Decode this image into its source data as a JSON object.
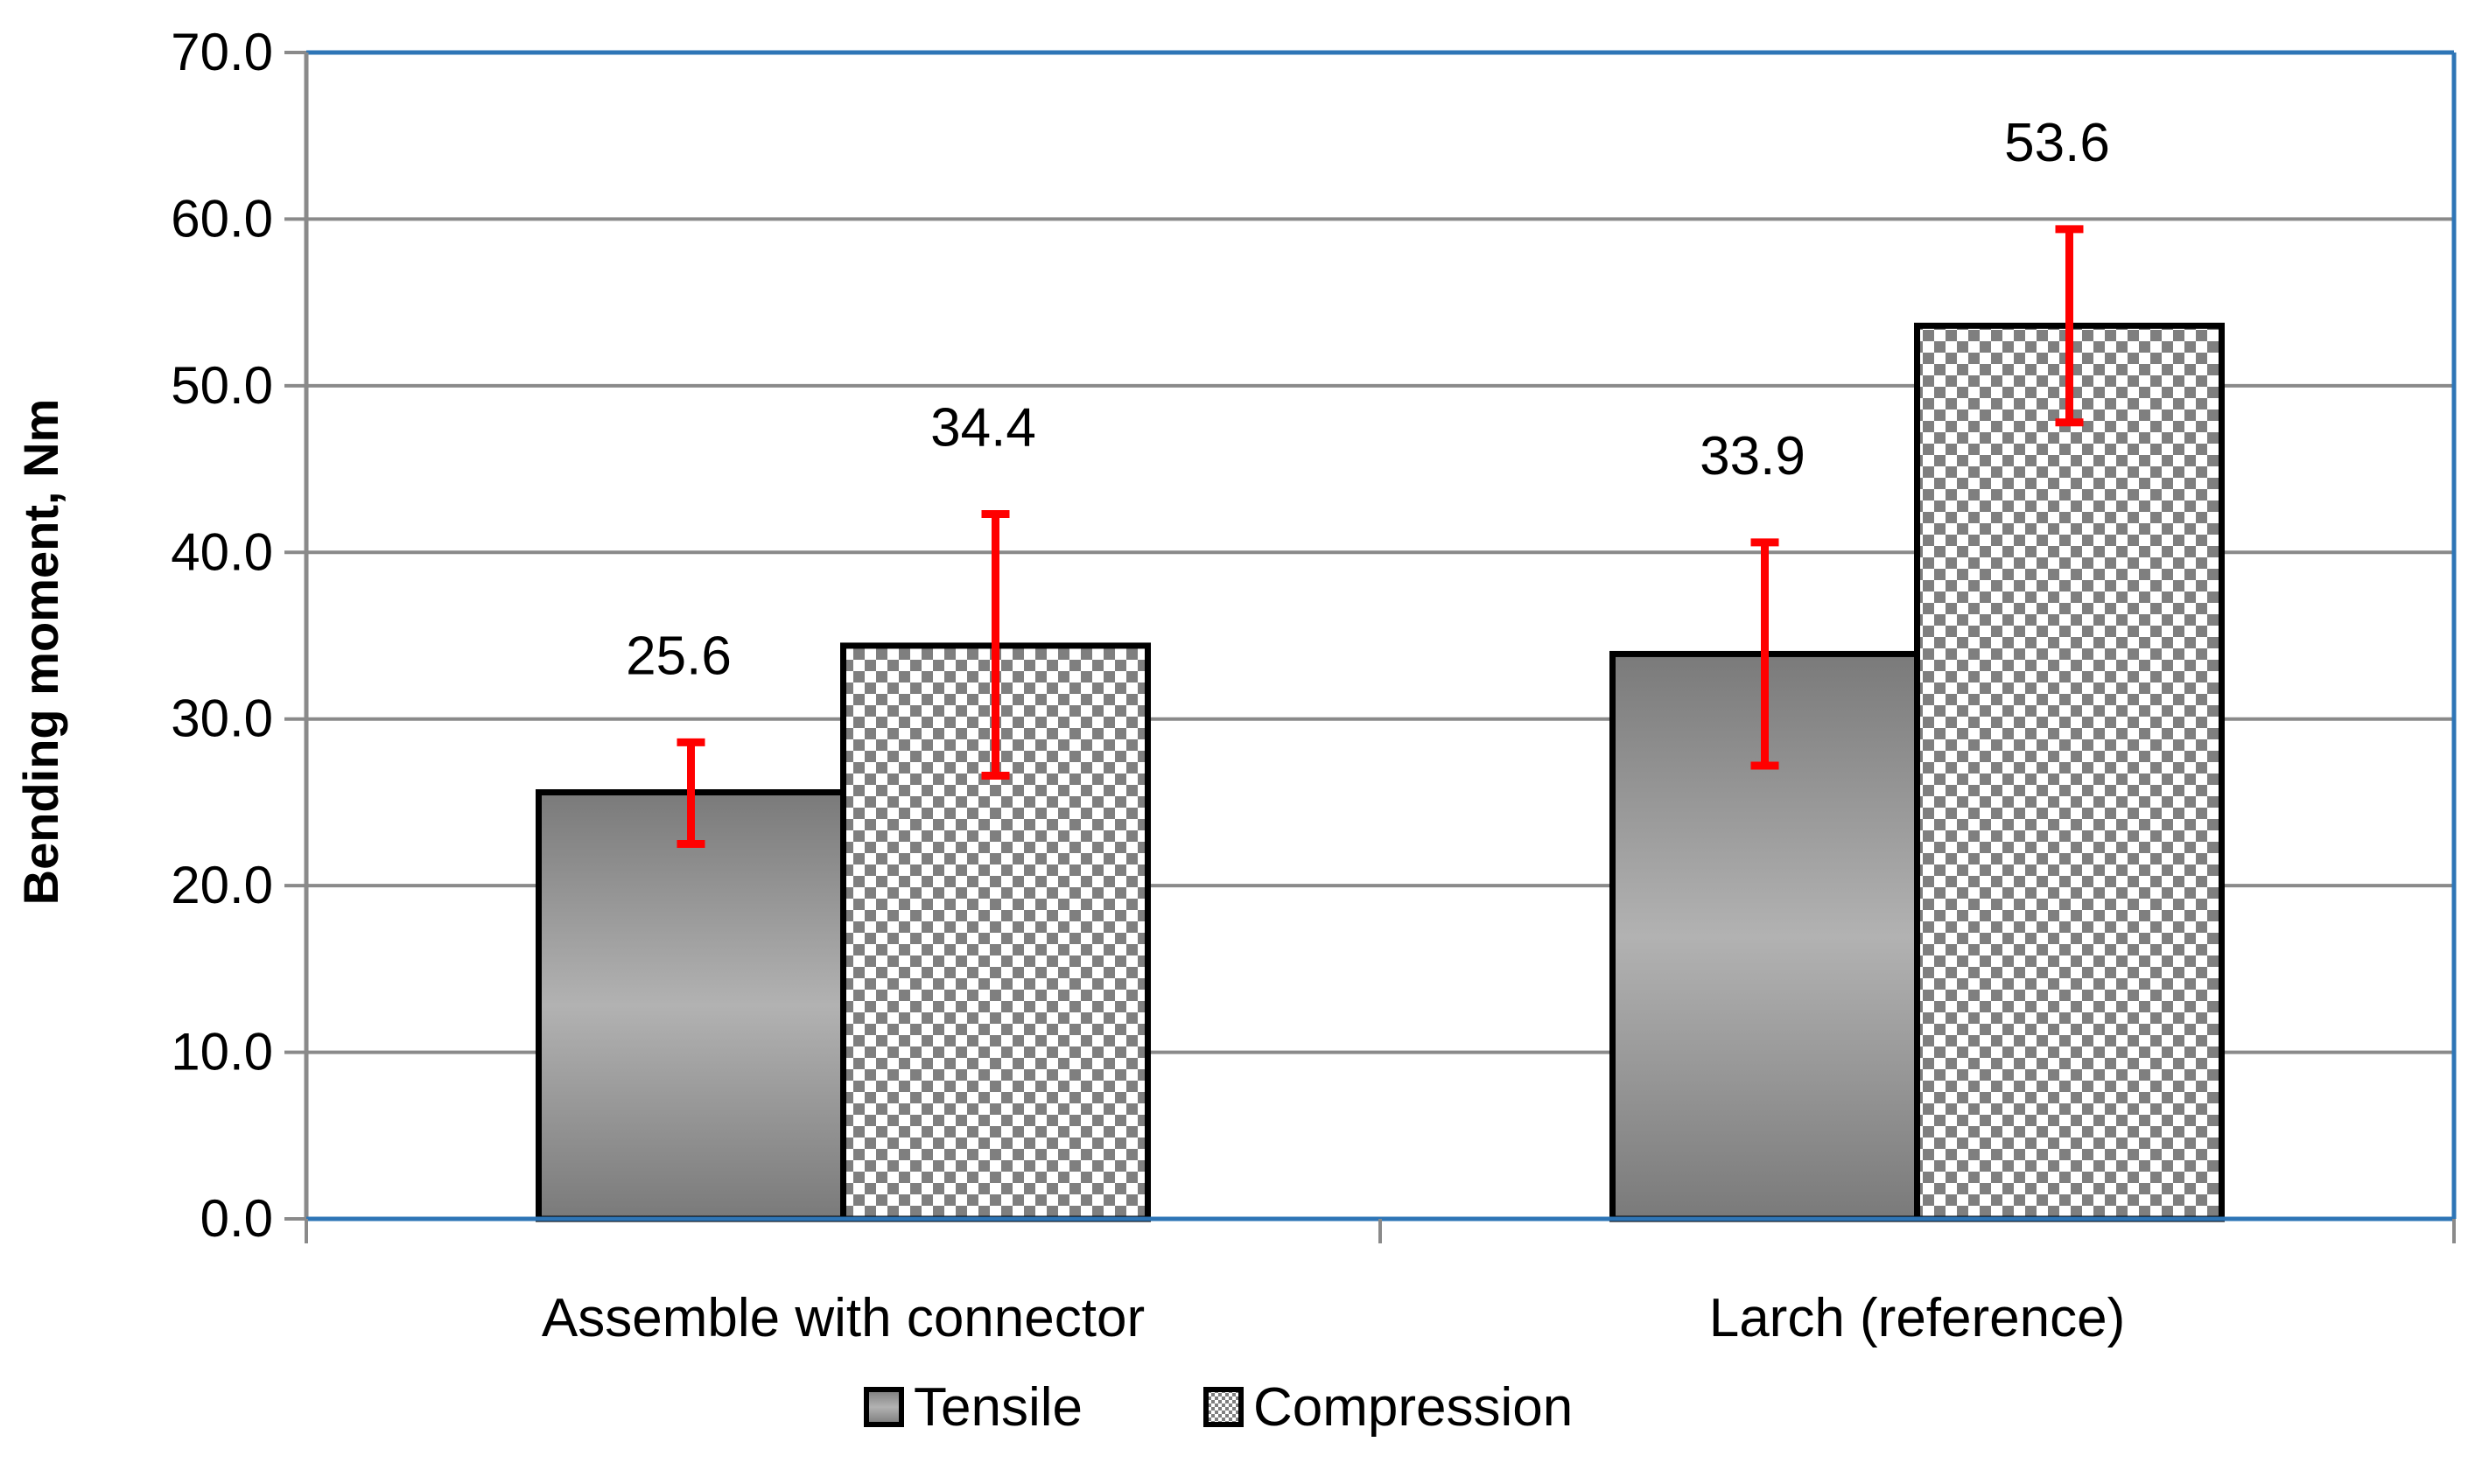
{
  "chart_data": {
    "type": "bar",
    "title": "",
    "xlabel": "",
    "ylabel": "Bending moment, Nm",
    "ylim": [
      0,
      70
    ],
    "yticks": [
      0,
      10,
      20,
      30,
      40,
      50,
      60,
      70
    ],
    "ytick_labels": [
      "0.0",
      "10.0",
      "20.0",
      "30.0",
      "40.0",
      "50.0",
      "60.0",
      "70.0"
    ],
    "categories": [
      "Assemble with connector",
      "Larch (reference)"
    ],
    "series": [
      {
        "name": "Tensile",
        "fill": "gradient-gray",
        "values": [
          25.6,
          33.9
        ],
        "value_labels": [
          "25.6",
          "33.9"
        ],
        "error_low": [
          22.5,
          27.2
        ],
        "error_high": [
          28.6,
          40.6
        ]
      },
      {
        "name": "Compression",
        "fill": "checkerboard",
        "values": [
          34.4,
          53.6
        ],
        "value_labels": [
          "34.4",
          "53.6"
        ],
        "error_low": [
          26.6,
          47.8
        ],
        "error_high": [
          42.3,
          59.4
        ]
      }
    ],
    "grid": true,
    "legend_position": "bottom",
    "colors": {
      "gridline": "#8a8a8a",
      "plot_border": "#2e75b6",
      "error_bar": "#ff0000",
      "bar_outline": "#000000",
      "tensile_dark": "#7c7c7c",
      "tensile_light": "#b0b0b0",
      "checker_dark": "#7f7f7f",
      "checker_light": "#ffffff"
    }
  }
}
